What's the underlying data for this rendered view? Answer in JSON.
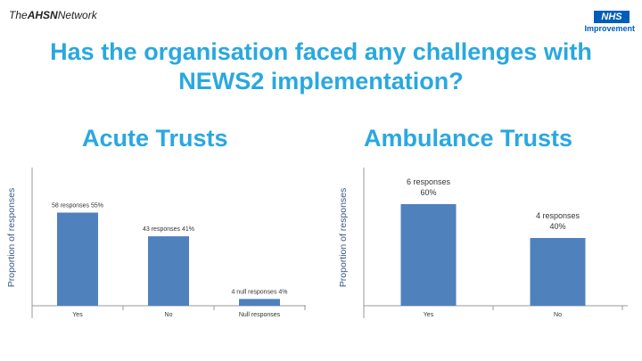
{
  "header": {
    "left_logo_prefix": "The",
    "left_logo_bold": "AHSN",
    "left_logo_suffix": "Network",
    "right_logo": "NHS",
    "right_logo_sub": "Improvement"
  },
  "title_line1": "Has the organisation faced any challenges with",
  "title_line2": "NEWS2 implementation?",
  "colors": {
    "title": "#29a8e0",
    "bar": "#4f81bd"
  },
  "chart_data": [
    {
      "type": "bar",
      "title": "Acute Trusts",
      "ylabel": "Proportion of responses",
      "categories": [
        "Yes",
        "No",
        "Null responses"
      ],
      "values": [
        55,
        41,
        4
      ],
      "data_labels": [
        "58 responses 55%",
        "43 responses 41%",
        "4 null responses 4%"
      ],
      "ylim": [
        0,
        70
      ],
      "grid": false
    },
    {
      "type": "bar",
      "title": "Ambulance Trusts",
      "ylabel": "Proportion of responses",
      "categories": [
        "Yes",
        "No"
      ],
      "values": [
        60,
        40
      ],
      "data_labels": [
        [
          "6 responses",
          "60%"
        ],
        [
          "4 responses",
          "40%"
        ]
      ],
      "ylim": [
        0,
        70
      ],
      "grid": false
    }
  ]
}
